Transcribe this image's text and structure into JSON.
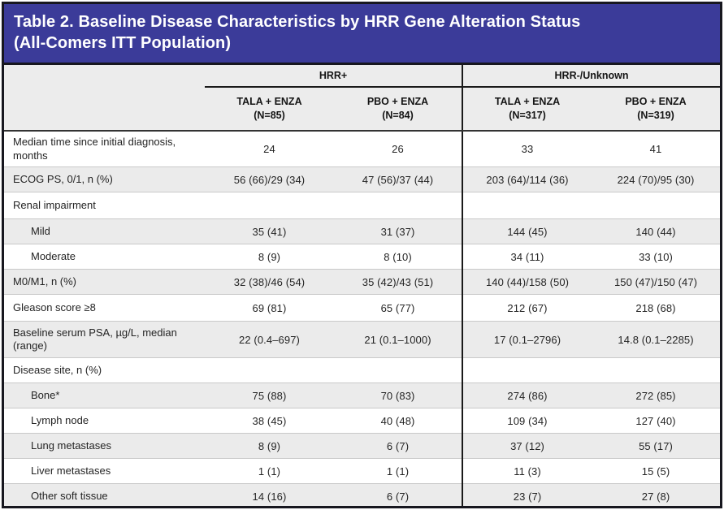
{
  "title": {
    "line1": "Table 2. Baseline Disease Characteristics by HRR Gene Alteration Status",
    "line2": "(All-Comers ITT Population)"
  },
  "colors": {
    "banner_bg": "#3b3b99",
    "banner_text": "#ffffff",
    "header_bg": "#ececec",
    "zebra_row_bg": "#ebebeb",
    "outer_border": "#17171f",
    "divider": "#1a1a1a"
  },
  "table": {
    "groups": [
      {
        "label": "HRR+"
      },
      {
        "label": "HRR-/Unknown"
      }
    ],
    "columns": [
      {
        "arm": "TALA + ENZA",
        "n": "(N=85)"
      },
      {
        "arm": "PBO + ENZA",
        "n": "(N=84)"
      },
      {
        "arm": "TALA + ENZA",
        "n": "(N=317)"
      },
      {
        "arm": "PBO + ENZA",
        "n": "(N=319)"
      }
    ],
    "rows": [
      {
        "label": "Median time since initial diagnosis, months",
        "indent": false,
        "values": [
          "24",
          "26",
          "33",
          "41"
        ]
      },
      {
        "label": "ECOG PS, 0/1, n (%)",
        "indent": false,
        "values": [
          "56 (66)/29 (34)",
          "47 (56)/37 (44)",
          "203 (64)/114 (36)",
          "224 (70)/95 (30)"
        ]
      },
      {
        "label": "Renal impairment",
        "indent": false,
        "values": [
          "",
          "",
          "",
          ""
        ]
      },
      {
        "label": "Mild",
        "indent": true,
        "values": [
          "35 (41)",
          "31 (37)",
          "144 (45)",
          "140 (44)"
        ]
      },
      {
        "label": "Moderate",
        "indent": true,
        "values": [
          "8 (9)",
          "8 (10)",
          "34 (11)",
          "33 (10)"
        ]
      },
      {
        "label": "M0/M1, n (%)",
        "indent": false,
        "values": [
          "32 (38)/46 (54)",
          "35 (42)/43 (51)",
          "140 (44)/158 (50)",
          "150 (47)/150 (47)"
        ]
      },
      {
        "label": "Gleason score ≥8",
        "indent": false,
        "values": [
          "69 (81)",
          "65 (77)",
          "212 (67)",
          "218 (68)"
        ]
      },
      {
        "label": "Baseline serum PSA, µg/L, median (range)",
        "indent": false,
        "values": [
          "22 (0.4–697)",
          "21 (0.1–1000)",
          "17 (0.1–2796)",
          "14.8 (0.1–2285)"
        ]
      },
      {
        "label": "Disease site, n (%)",
        "indent": false,
        "values": [
          "",
          "",
          "",
          ""
        ]
      },
      {
        "label": "Bone*",
        "indent": true,
        "values": [
          "75 (88)",
          "70 (83)",
          "274 (86)",
          "272 (85)"
        ]
      },
      {
        "label": "Lymph node",
        "indent": true,
        "values": [
          "38 (45)",
          "40 (48)",
          "109 (34)",
          "127 (40)"
        ]
      },
      {
        "label": "Lung metastases",
        "indent": true,
        "values": [
          "8 (9)",
          "6 (7)",
          "37 (12)",
          "55 (17)"
        ]
      },
      {
        "label": "Liver metastases",
        "indent": true,
        "values": [
          "1 (1)",
          "1 (1)",
          "11 (3)",
          "15 (5)"
        ]
      },
      {
        "label": "Other soft tissue",
        "indent": true,
        "values": [
          "14 (16)",
          "6 (7)",
          "23 (7)",
          "27 (8)"
        ]
      }
    ]
  }
}
